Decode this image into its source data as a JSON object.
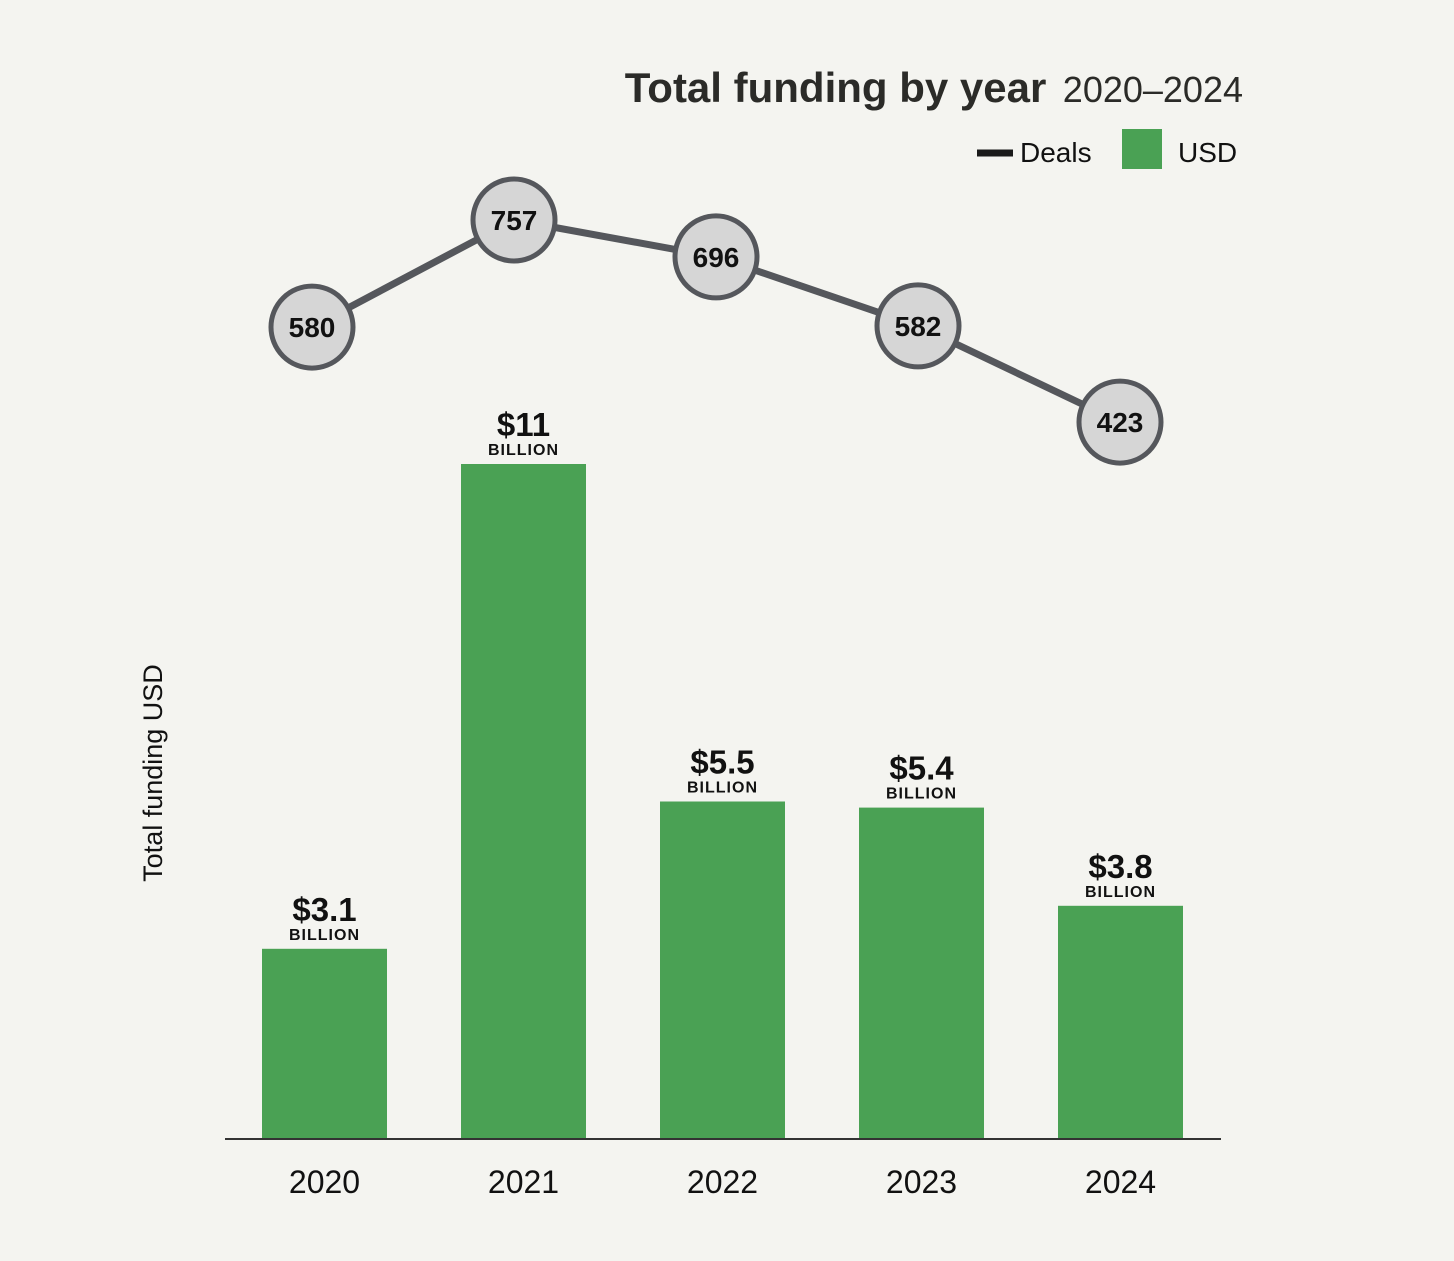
{
  "chart_data": {
    "type": "bar",
    "title": "Total funding by year",
    "subtitle": "2020–2024",
    "ylabel": "Total funding USD",
    "categories": [
      "2020",
      "2021",
      "2022",
      "2023",
      "2024"
    ],
    "ylim": [
      0,
      11
    ],
    "bar_unit_label": "BILLION",
    "legend": {
      "placement": "top-right",
      "items": [
        {
          "label": "Deals",
          "kind": "line",
          "color": "#1a1a1a"
        },
        {
          "label": "USD",
          "kind": "swatch",
          "color": "#4aa154"
        }
      ]
    },
    "series": [
      {
        "name": "USD",
        "type": "bar",
        "color": "#4aa154",
        "values": [
          3.1,
          11,
          5.5,
          5.4,
          3.8
        ],
        "labels": [
          "$3.1",
          "$11",
          "$5.5",
          "$5.4",
          "$3.8"
        ]
      },
      {
        "name": "Deals",
        "type": "line",
        "color": "#55575c",
        "marker_fill": "#d6d6d6",
        "values": [
          580,
          757,
          696,
          582,
          423
        ],
        "labels": [
          "580",
          "757",
          "696",
          "582",
          "423"
        ]
      }
    ],
    "grid": false
  }
}
